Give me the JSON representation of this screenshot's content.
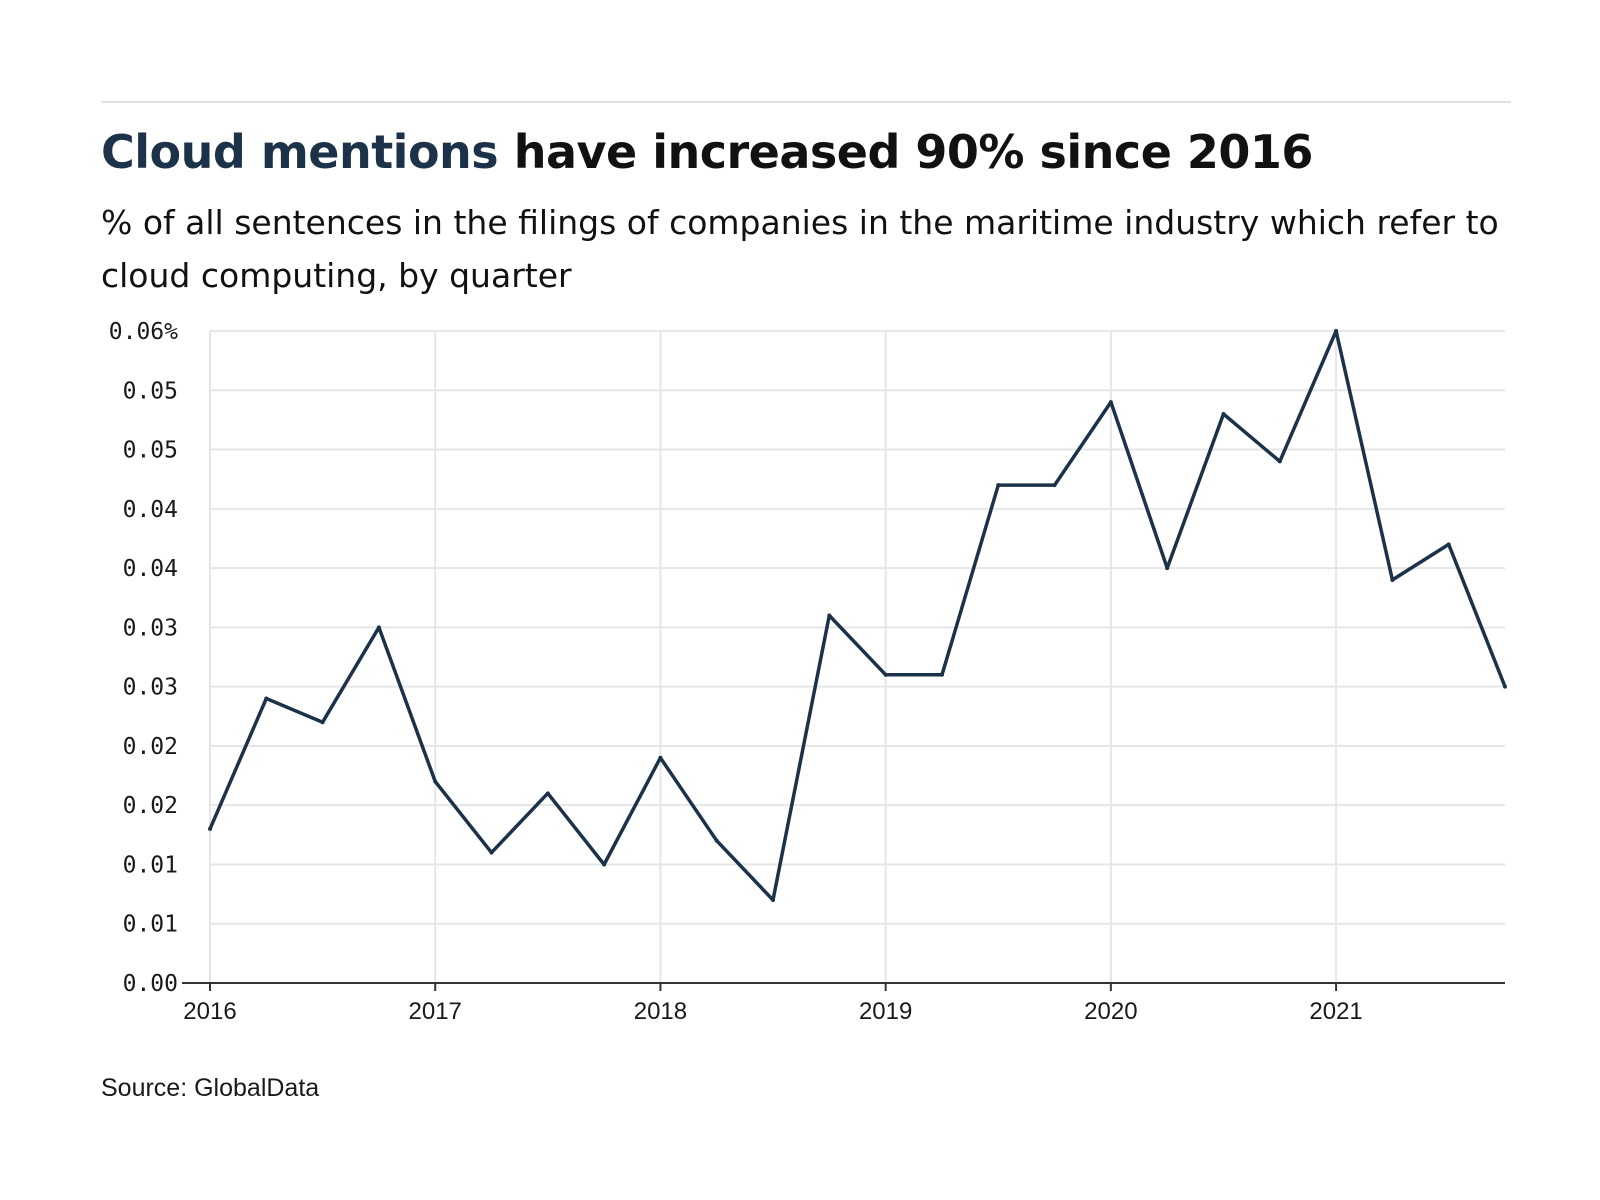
{
  "header": {
    "title_highlight": "Cloud mentions",
    "title_rest": " have increased 90% since 2016",
    "subtitle": "% of all sentences in the filings of companies in the maritime industry which refer to cloud computing, by quarter"
  },
  "footer": {
    "source": "Source: GlobalData"
  },
  "colors": {
    "line": "#1c3249",
    "grid": "#e6e6e6",
    "axis": "#333333"
  },
  "chart_data": {
    "type": "line",
    "title": "Cloud mentions have increased 90% since 2016",
    "subtitle": "% of all sentences in the filings of companies in the maritime industry which refer to cloud computing, by quarter",
    "xlabel": "",
    "ylabel": "",
    "x_ticks": [
      "2016",
      "2017",
      "2018",
      "2019",
      "2020",
      "2021"
    ],
    "y_ticks": [
      {
        "value": 0.0,
        "label": "0.00"
      },
      {
        "value": 0.005,
        "label": "0.01"
      },
      {
        "value": 0.01,
        "label": "0.01"
      },
      {
        "value": 0.015,
        "label": "0.02"
      },
      {
        "value": 0.02,
        "label": "0.02"
      },
      {
        "value": 0.025,
        "label": "0.03"
      },
      {
        "value": 0.03,
        "label": "0.03"
      },
      {
        "value": 0.035,
        "label": "0.04"
      },
      {
        "value": 0.04,
        "label": "0.04"
      },
      {
        "value": 0.045,
        "label": "0.05"
      },
      {
        "value": 0.05,
        "label": "0.05"
      },
      {
        "value": 0.055,
        "label": "0.06%"
      }
    ],
    "ylim": [
      0,
      0.055
    ],
    "xlim": [
      2016,
      2021.75
    ],
    "grid": true,
    "series": [
      {
        "x": [
          "2016 Q1",
          "2016 Q2",
          "2016 Q3",
          "2016 Q4",
          "2017 Q1",
          "2017 Q2",
          "2017 Q3",
          "2017 Q4",
          "2018 Q1",
          "2018 Q2",
          "2018 Q3",
          "2018 Q4",
          "2019 Q1",
          "2019 Q2",
          "2019 Q3",
          "2019 Q4",
          "2020 Q1",
          "2020 Q2",
          "2020 Q3",
          "2020 Q4",
          "2021 Q1",
          "2021 Q2",
          "2021 Q3",
          "2021 Q4"
        ],
        "values": [
          0.013,
          0.024,
          0.022,
          0.03,
          0.017,
          0.011,
          0.016,
          0.01,
          0.019,
          0.012,
          0.007,
          0.031,
          0.026,
          0.026,
          0.042,
          0.042,
          0.049,
          0.035,
          0.048,
          0.044,
          0.055,
          0.034,
          0.037,
          0.025
        ]
      }
    ]
  }
}
